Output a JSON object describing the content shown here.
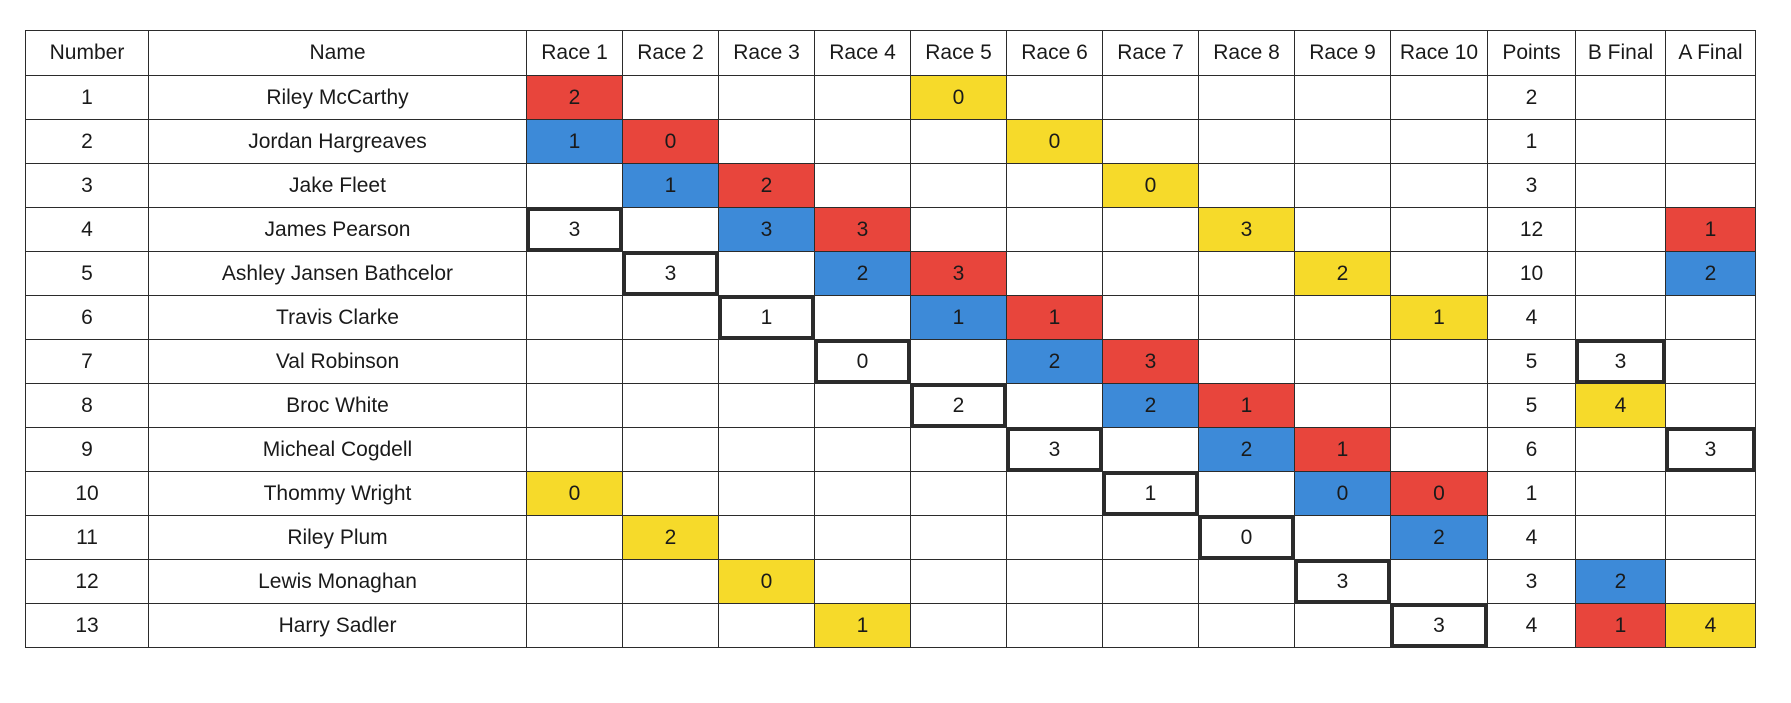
{
  "colors": {
    "red": "#e8453c",
    "blue": "#3d8ad8",
    "yellow": "#f6da2a",
    "border": "#2b2b2b"
  },
  "headers": [
    "Number",
    "Name",
    "Race 1",
    "Race 2",
    "Race 3",
    "Race 4",
    "Race 5",
    "Race 6",
    "Race 7",
    "Race 8",
    "Race 9",
    "Race 10",
    "Points",
    "B Final",
    "A Final"
  ],
  "rows": [
    {
      "number": "1",
      "name": "Riley McCarthy",
      "points": "2",
      "cells": [
        {
          "v": "2",
          "c": "red"
        },
        {
          "v": "",
          "c": ""
        },
        {
          "v": "",
          "c": ""
        },
        {
          "v": "",
          "c": ""
        },
        {
          "v": "0",
          "c": "yellow"
        },
        {
          "v": "",
          "c": ""
        },
        {
          "v": "",
          "c": ""
        },
        {
          "v": "",
          "c": ""
        },
        {
          "v": "",
          "c": ""
        },
        {
          "v": "",
          "c": ""
        }
      ],
      "b_final": {
        "v": "",
        "c": ""
      },
      "a_final": {
        "v": "",
        "c": ""
      }
    },
    {
      "number": "2",
      "name": "Jordan Hargreaves",
      "points": "1",
      "cells": [
        {
          "v": "1",
          "c": "blue"
        },
        {
          "v": "0",
          "c": "red"
        },
        {
          "v": "",
          "c": ""
        },
        {
          "v": "",
          "c": ""
        },
        {
          "v": "",
          "c": ""
        },
        {
          "v": "0",
          "c": "yellow"
        },
        {
          "v": "",
          "c": ""
        },
        {
          "v": "",
          "c": ""
        },
        {
          "v": "",
          "c": ""
        },
        {
          "v": "",
          "c": ""
        }
      ],
      "b_final": {
        "v": "",
        "c": ""
      },
      "a_final": {
        "v": "",
        "c": ""
      }
    },
    {
      "number": "3",
      "name": "Jake Fleet",
      "points": "3",
      "cells": [
        {
          "v": "",
          "c": ""
        },
        {
          "v": "1",
          "c": "blue"
        },
        {
          "v": "2",
          "c": "red"
        },
        {
          "v": "",
          "c": ""
        },
        {
          "v": "",
          "c": ""
        },
        {
          "v": "",
          "c": ""
        },
        {
          "v": "0",
          "c": "yellow"
        },
        {
          "v": "",
          "c": ""
        },
        {
          "v": "",
          "c": ""
        },
        {
          "v": "",
          "c": ""
        }
      ],
      "b_final": {
        "v": "",
        "c": ""
      },
      "a_final": {
        "v": "",
        "c": ""
      }
    },
    {
      "number": "4",
      "name": "James Pearson",
      "points": "12",
      "cells": [
        {
          "v": "3",
          "c": "boxed"
        },
        {
          "v": "",
          "c": ""
        },
        {
          "v": "3",
          "c": "blue"
        },
        {
          "v": "3",
          "c": "red"
        },
        {
          "v": "",
          "c": ""
        },
        {
          "v": "",
          "c": ""
        },
        {
          "v": "",
          "c": ""
        },
        {
          "v": "3",
          "c": "yellow"
        },
        {
          "v": "",
          "c": ""
        },
        {
          "v": "",
          "c": ""
        }
      ],
      "b_final": {
        "v": "",
        "c": ""
      },
      "a_final": {
        "v": "1",
        "c": "red"
      }
    },
    {
      "number": "5",
      "name": "Ashley Jansen Bathcelor",
      "points": "10",
      "cells": [
        {
          "v": "",
          "c": ""
        },
        {
          "v": "3",
          "c": "boxed"
        },
        {
          "v": "",
          "c": ""
        },
        {
          "v": "2",
          "c": "blue"
        },
        {
          "v": "3",
          "c": "red"
        },
        {
          "v": "",
          "c": ""
        },
        {
          "v": "",
          "c": ""
        },
        {
          "v": "",
          "c": ""
        },
        {
          "v": "2",
          "c": "yellow"
        },
        {
          "v": "",
          "c": ""
        }
      ],
      "b_final": {
        "v": "",
        "c": ""
      },
      "a_final": {
        "v": "2",
        "c": "blue"
      }
    },
    {
      "number": "6",
      "name": "Travis Clarke",
      "points": "4",
      "cells": [
        {
          "v": "",
          "c": ""
        },
        {
          "v": "",
          "c": ""
        },
        {
          "v": "1",
          "c": "boxed"
        },
        {
          "v": "",
          "c": ""
        },
        {
          "v": "1",
          "c": "blue"
        },
        {
          "v": "1",
          "c": "red"
        },
        {
          "v": "",
          "c": ""
        },
        {
          "v": "",
          "c": ""
        },
        {
          "v": "",
          "c": ""
        },
        {
          "v": "1",
          "c": "yellow"
        }
      ],
      "b_final": {
        "v": "",
        "c": ""
      },
      "a_final": {
        "v": "",
        "c": ""
      }
    },
    {
      "number": "7",
      "name": "Val Robinson",
      "points": "5",
      "cells": [
        {
          "v": "",
          "c": ""
        },
        {
          "v": "",
          "c": ""
        },
        {
          "v": "",
          "c": ""
        },
        {
          "v": "0",
          "c": "boxed"
        },
        {
          "v": "",
          "c": ""
        },
        {
          "v": "2",
          "c": "blue"
        },
        {
          "v": "3",
          "c": "red"
        },
        {
          "v": "",
          "c": ""
        },
        {
          "v": "",
          "c": ""
        },
        {
          "v": "",
          "c": ""
        }
      ],
      "b_final": {
        "v": "3",
        "c": "boxed"
      },
      "a_final": {
        "v": "",
        "c": ""
      }
    },
    {
      "number": "8",
      "name": "Broc White",
      "points": "5",
      "cells": [
        {
          "v": "",
          "c": ""
        },
        {
          "v": "",
          "c": ""
        },
        {
          "v": "",
          "c": ""
        },
        {
          "v": "",
          "c": ""
        },
        {
          "v": "2",
          "c": "boxed"
        },
        {
          "v": "",
          "c": ""
        },
        {
          "v": "2",
          "c": "blue"
        },
        {
          "v": "1",
          "c": "red"
        },
        {
          "v": "",
          "c": ""
        },
        {
          "v": "",
          "c": ""
        }
      ],
      "b_final": {
        "v": "4",
        "c": "yellow"
      },
      "a_final": {
        "v": "",
        "c": ""
      }
    },
    {
      "number": "9",
      "name": "Micheal Cogdell",
      "points": "6",
      "cells": [
        {
          "v": "",
          "c": ""
        },
        {
          "v": "",
          "c": ""
        },
        {
          "v": "",
          "c": ""
        },
        {
          "v": "",
          "c": ""
        },
        {
          "v": "",
          "c": ""
        },
        {
          "v": "3",
          "c": "boxed"
        },
        {
          "v": "",
          "c": ""
        },
        {
          "v": "2",
          "c": "blue"
        },
        {
          "v": "1",
          "c": "red"
        },
        {
          "v": "",
          "c": ""
        }
      ],
      "b_final": {
        "v": "",
        "c": ""
      },
      "a_final": {
        "v": "3",
        "c": "boxed"
      }
    },
    {
      "number": "10",
      "name": "Thommy Wright",
      "points": "1",
      "cells": [
        {
          "v": "0",
          "c": "yellow"
        },
        {
          "v": "",
          "c": ""
        },
        {
          "v": "",
          "c": ""
        },
        {
          "v": "",
          "c": ""
        },
        {
          "v": "",
          "c": ""
        },
        {
          "v": "",
          "c": ""
        },
        {
          "v": "1",
          "c": "boxed"
        },
        {
          "v": "",
          "c": ""
        },
        {
          "v": "0",
          "c": "blue"
        },
        {
          "v": "0",
          "c": "red"
        }
      ],
      "b_final": {
        "v": "",
        "c": ""
      },
      "a_final": {
        "v": "",
        "c": ""
      }
    },
    {
      "number": "11",
      "name": "Riley Plum",
      "points": "4",
      "cells": [
        {
          "v": "",
          "c": ""
        },
        {
          "v": "2",
          "c": "yellow"
        },
        {
          "v": "",
          "c": ""
        },
        {
          "v": "",
          "c": ""
        },
        {
          "v": "",
          "c": ""
        },
        {
          "v": "",
          "c": ""
        },
        {
          "v": "",
          "c": ""
        },
        {
          "v": "0",
          "c": "boxed"
        },
        {
          "v": "",
          "c": ""
        },
        {
          "v": "2",
          "c": "blue"
        }
      ],
      "b_final": {
        "v": "",
        "c": ""
      },
      "a_final": {
        "v": "",
        "c": ""
      }
    },
    {
      "number": "12",
      "name": "Lewis Monaghan",
      "points": "3",
      "cells": [
        {
          "v": "",
          "c": ""
        },
        {
          "v": "",
          "c": ""
        },
        {
          "v": "0",
          "c": "yellow"
        },
        {
          "v": "",
          "c": ""
        },
        {
          "v": "",
          "c": ""
        },
        {
          "v": "",
          "c": ""
        },
        {
          "v": "",
          "c": ""
        },
        {
          "v": "",
          "c": ""
        },
        {
          "v": "3",
          "c": "boxed"
        },
        {
          "v": "",
          "c": ""
        }
      ],
      "b_final": {
        "v": "2",
        "c": "blue"
      },
      "a_final": {
        "v": "",
        "c": ""
      }
    },
    {
      "number": "13",
      "name": "Harry Sadler",
      "points": "4",
      "cells": [
        {
          "v": "",
          "c": ""
        },
        {
          "v": "",
          "c": ""
        },
        {
          "v": "",
          "c": ""
        },
        {
          "v": "1",
          "c": "yellow"
        },
        {
          "v": "",
          "c": ""
        },
        {
          "v": "",
          "c": ""
        },
        {
          "v": "",
          "c": ""
        },
        {
          "v": "",
          "c": ""
        },
        {
          "v": "",
          "c": ""
        },
        {
          "v": "3",
          "c": "boxed"
        }
      ],
      "b_final": {
        "v": "1",
        "c": "red"
      },
      "a_final": {
        "v": "4",
        "c": "yellow"
      }
    }
  ]
}
